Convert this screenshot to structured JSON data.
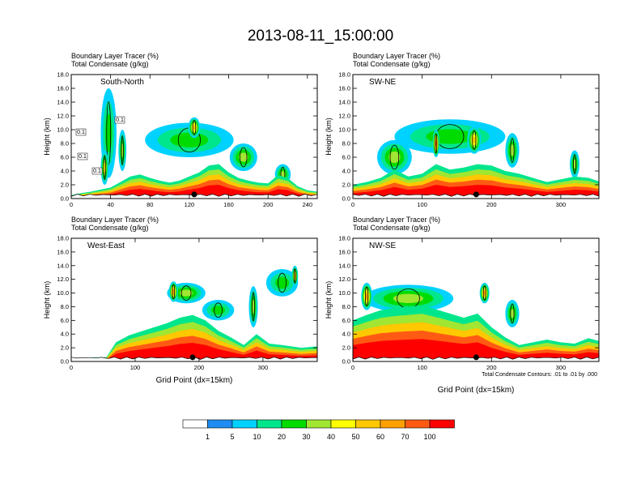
{
  "title": "2013-08-11_15:00:00",
  "footer_note": "Total Condensate Contours: .01 to .01 by .000",
  "colorbar": {
    "colors": [
      "#ffffff",
      "#1e8cf0",
      "#00d2ff",
      "#00e68c",
      "#00dc00",
      "#a0e632",
      "#ffff00",
      "#ffc800",
      "#ffa000",
      "#ff5a14",
      "#ff0000"
    ],
    "labels": [
      "1",
      "5",
      "10",
      "20",
      "30",
      "40",
      "50",
      "60",
      "70",
      "100"
    ]
  },
  "chart_data": [
    {
      "type": "contour",
      "name": "South-North",
      "header": [
        "Boundary Layer Tracer   (%)",
        "Total Condensate   (g/kg)"
      ],
      "ylabel": "Height (km)",
      "xlabel": "",
      "ylim": [
        0,
        18
      ],
      "yticks": [
        "0.0",
        "2.0",
        "4.0",
        "6.0",
        "8.0",
        "10.0",
        "12.0",
        "14.0",
        "16.0",
        "18.0"
      ],
      "xlim": [
        0,
        250
      ],
      "xticks": [
        0,
        40,
        80,
        120,
        160,
        200,
        240
      ],
      "marker_x": 125,
      "contour_labels": [
        "0.1",
        "0.1",
        "0.1",
        "0.1"
      ],
      "layer": [
        [
          0,
          0.5
        ],
        [
          10,
          0.8
        ],
        [
          20,
          1.0
        ],
        [
          30,
          1.3
        ],
        [
          40,
          1.6
        ],
        [
          50,
          2.4
        ],
        [
          60,
          3.2
        ],
        [
          70,
          3.5
        ],
        [
          80,
          3.0
        ],
        [
          90,
          2.6
        ],
        [
          100,
          2.3
        ],
        [
          110,
          2.6
        ],
        [
          120,
          3.2
        ],
        [
          130,
          3.8
        ],
        [
          140,
          4.8
        ],
        [
          150,
          5.0
        ],
        [
          160,
          3.8
        ],
        [
          170,
          3.0
        ],
        [
          180,
          2.6
        ],
        [
          190,
          2.3
        ],
        [
          200,
          2.2
        ],
        [
          210,
          3.4
        ],
        [
          220,
          3.0
        ],
        [
          230,
          1.8
        ],
        [
          240,
          1.2
        ],
        [
          250,
          1.0
        ]
      ],
      "blobs": [
        {
          "x": 38,
          "y": 9.5,
          "w": 16,
          "h": 13,
          "v": 20
        },
        {
          "x": 34,
          "y": 4.5,
          "w": 8,
          "h": 5,
          "v": 40
        },
        {
          "x": 52,
          "y": 7,
          "w": 8,
          "h": 6,
          "v": 30
        },
        {
          "x": 120,
          "y": 8.5,
          "w": 90,
          "h": 5,
          "v": 20
        },
        {
          "x": 125,
          "y": 10.3,
          "w": 12,
          "h": 3,
          "v": 50
        },
        {
          "x": 175,
          "y": 6,
          "w": 28,
          "h": 4,
          "v": 30
        },
        {
          "x": 215,
          "y": 3.5,
          "w": 16,
          "h": 3,
          "v": 30
        }
      ]
    },
    {
      "type": "contour",
      "name": "SW-NE",
      "header": [
        "Boundary Layer Tracer   (%)",
        "Total Condensate   (g/kg)"
      ],
      "ylabel": "Height (km)",
      "xlabel": "",
      "ylim": [
        0,
        18
      ],
      "yticks": [
        "0.0",
        "2.0",
        "4.0",
        "6.0",
        "8.0",
        "10.0",
        "12.0",
        "14.0",
        "16.0",
        "18.0"
      ],
      "xlim": [
        0,
        355
      ],
      "xticks": [
        0,
        100,
        200,
        300
      ],
      "marker_x": 178,
      "contour_labels": [],
      "layer": [
        [
          0,
          2.0
        ],
        [
          20,
          2.4
        ],
        [
          40,
          3.0
        ],
        [
          60,
          4.2
        ],
        [
          80,
          3.2
        ],
        [
          100,
          3.6
        ],
        [
          120,
          5.0
        ],
        [
          140,
          4.2
        ],
        [
          160,
          4.5
        ],
        [
          180,
          5.0
        ],
        [
          200,
          4.8
        ],
        [
          220,
          4.0
        ],
        [
          240,
          3.6
        ],
        [
          260,
          3.0
        ],
        [
          280,
          2.4
        ],
        [
          300,
          2.8
        ],
        [
          320,
          3.2
        ],
        [
          340,
          3.0
        ],
        [
          355,
          2.5
        ]
      ],
      "blobs": [
        {
          "x": 140,
          "y": 9.0,
          "w": 160,
          "h": 5,
          "v": 20
        },
        {
          "x": 60,
          "y": 6,
          "w": 50,
          "h": 5,
          "v": 30
        },
        {
          "x": 175,
          "y": 8.5,
          "w": 20,
          "h": 4,
          "v": 50
        },
        {
          "x": 120,
          "y": 8,
          "w": 10,
          "h": 4,
          "v": 70
        },
        {
          "x": 230,
          "y": 7,
          "w": 20,
          "h": 5,
          "v": 30
        },
        {
          "x": 320,
          "y": 5,
          "w": 14,
          "h": 4,
          "v": 30
        }
      ]
    },
    {
      "type": "contour",
      "name": "West-East",
      "header": [
        "Boundary Layer Tracer   (%)",
        "Total Condensate   (g/kg)"
      ],
      "ylabel": "Height (km)",
      "xlabel": "Grid Point (dx=15km)",
      "ylim": [
        0,
        18
      ],
      "yticks": [
        "0.0",
        "2.0",
        "4.0",
        "6.0",
        "8.0",
        "10.0",
        "12.0",
        "14.0",
        "16.0",
        "18.0"
      ],
      "xlim": [
        0,
        385
      ],
      "xticks": [
        0,
        100,
        200,
        300
      ],
      "marker_x": 190,
      "contour_labels": [],
      "layer": [
        [
          0,
          0.4
        ],
        [
          40,
          0.6
        ],
        [
          55,
          0.6
        ],
        [
          70,
          2.8
        ],
        [
          90,
          3.8
        ],
        [
          110,
          4.4
        ],
        [
          130,
          5.0
        ],
        [
          150,
          5.6
        ],
        [
          170,
          6.4
        ],
        [
          190,
          6.8
        ],
        [
          210,
          6.0
        ],
        [
          230,
          4.5
        ],
        [
          250,
          3.5
        ],
        [
          270,
          2.4
        ],
        [
          290,
          4.0
        ],
        [
          310,
          2.6
        ],
        [
          330,
          2.4
        ],
        [
          360,
          2.0
        ],
        [
          385,
          2.2
        ]
      ],
      "blobs": [
        {
          "x": 180,
          "y": 10,
          "w": 60,
          "h": 3,
          "v": 30
        },
        {
          "x": 160,
          "y": 10.2,
          "w": 14,
          "h": 3,
          "v": 60
        },
        {
          "x": 285,
          "y": 8,
          "w": 14,
          "h": 6,
          "v": 30
        },
        {
          "x": 330,
          "y": 11.5,
          "w": 50,
          "h": 4,
          "v": 20
        },
        {
          "x": 350,
          "y": 12.5,
          "w": 10,
          "h": 3,
          "v": 50
        },
        {
          "x": 230,
          "y": 7.5,
          "w": 50,
          "h": 3,
          "v": 20
        }
      ]
    },
    {
      "type": "contour",
      "name": "NW-SE",
      "header": [
        "Boundary Layer Tracer   (%)",
        "Total Condensate   (g/kg)"
      ],
      "ylabel": "Height (km)",
      "xlabel": "Grid Point (dx=15km)",
      "ylim": [
        0,
        18
      ],
      "yticks": [
        "0.0",
        "2.0",
        "4.0",
        "6.0",
        "8.0",
        "10.0",
        "12.0",
        "14.0",
        "16.0",
        "18.0"
      ],
      "xlim": [
        0,
        355
      ],
      "xticks": [
        0,
        100,
        200,
        300
      ],
      "marker_x": 178,
      "contour_labels": [],
      "layer": [
        [
          0,
          6.0
        ],
        [
          20,
          6.8
        ],
        [
          40,
          7.5
        ],
        [
          60,
          7.8
        ],
        [
          80,
          8.0
        ],
        [
          100,
          8.2
        ],
        [
          120,
          7.6
        ],
        [
          140,
          7.0
        ],
        [
          160,
          6.4
        ],
        [
          180,
          7.0
        ],
        [
          200,
          5.0
        ],
        [
          220,
          3.5
        ],
        [
          240,
          2.4
        ],
        [
          260,
          2.8
        ],
        [
          280,
          3.2
        ],
        [
          300,
          2.8
        ],
        [
          320,
          2.6
        ],
        [
          340,
          3.4
        ],
        [
          355,
          3.0
        ]
      ],
      "blobs": [
        {
          "x": 80,
          "y": 9.2,
          "w": 130,
          "h": 4,
          "v": 30
        },
        {
          "x": 20,
          "y": 9.5,
          "w": 16,
          "h": 4,
          "v": 60
        },
        {
          "x": 190,
          "y": 10,
          "w": 14,
          "h": 3,
          "v": 60
        },
        {
          "x": 230,
          "y": 7,
          "w": 20,
          "h": 4,
          "v": 30
        }
      ]
    }
  ]
}
